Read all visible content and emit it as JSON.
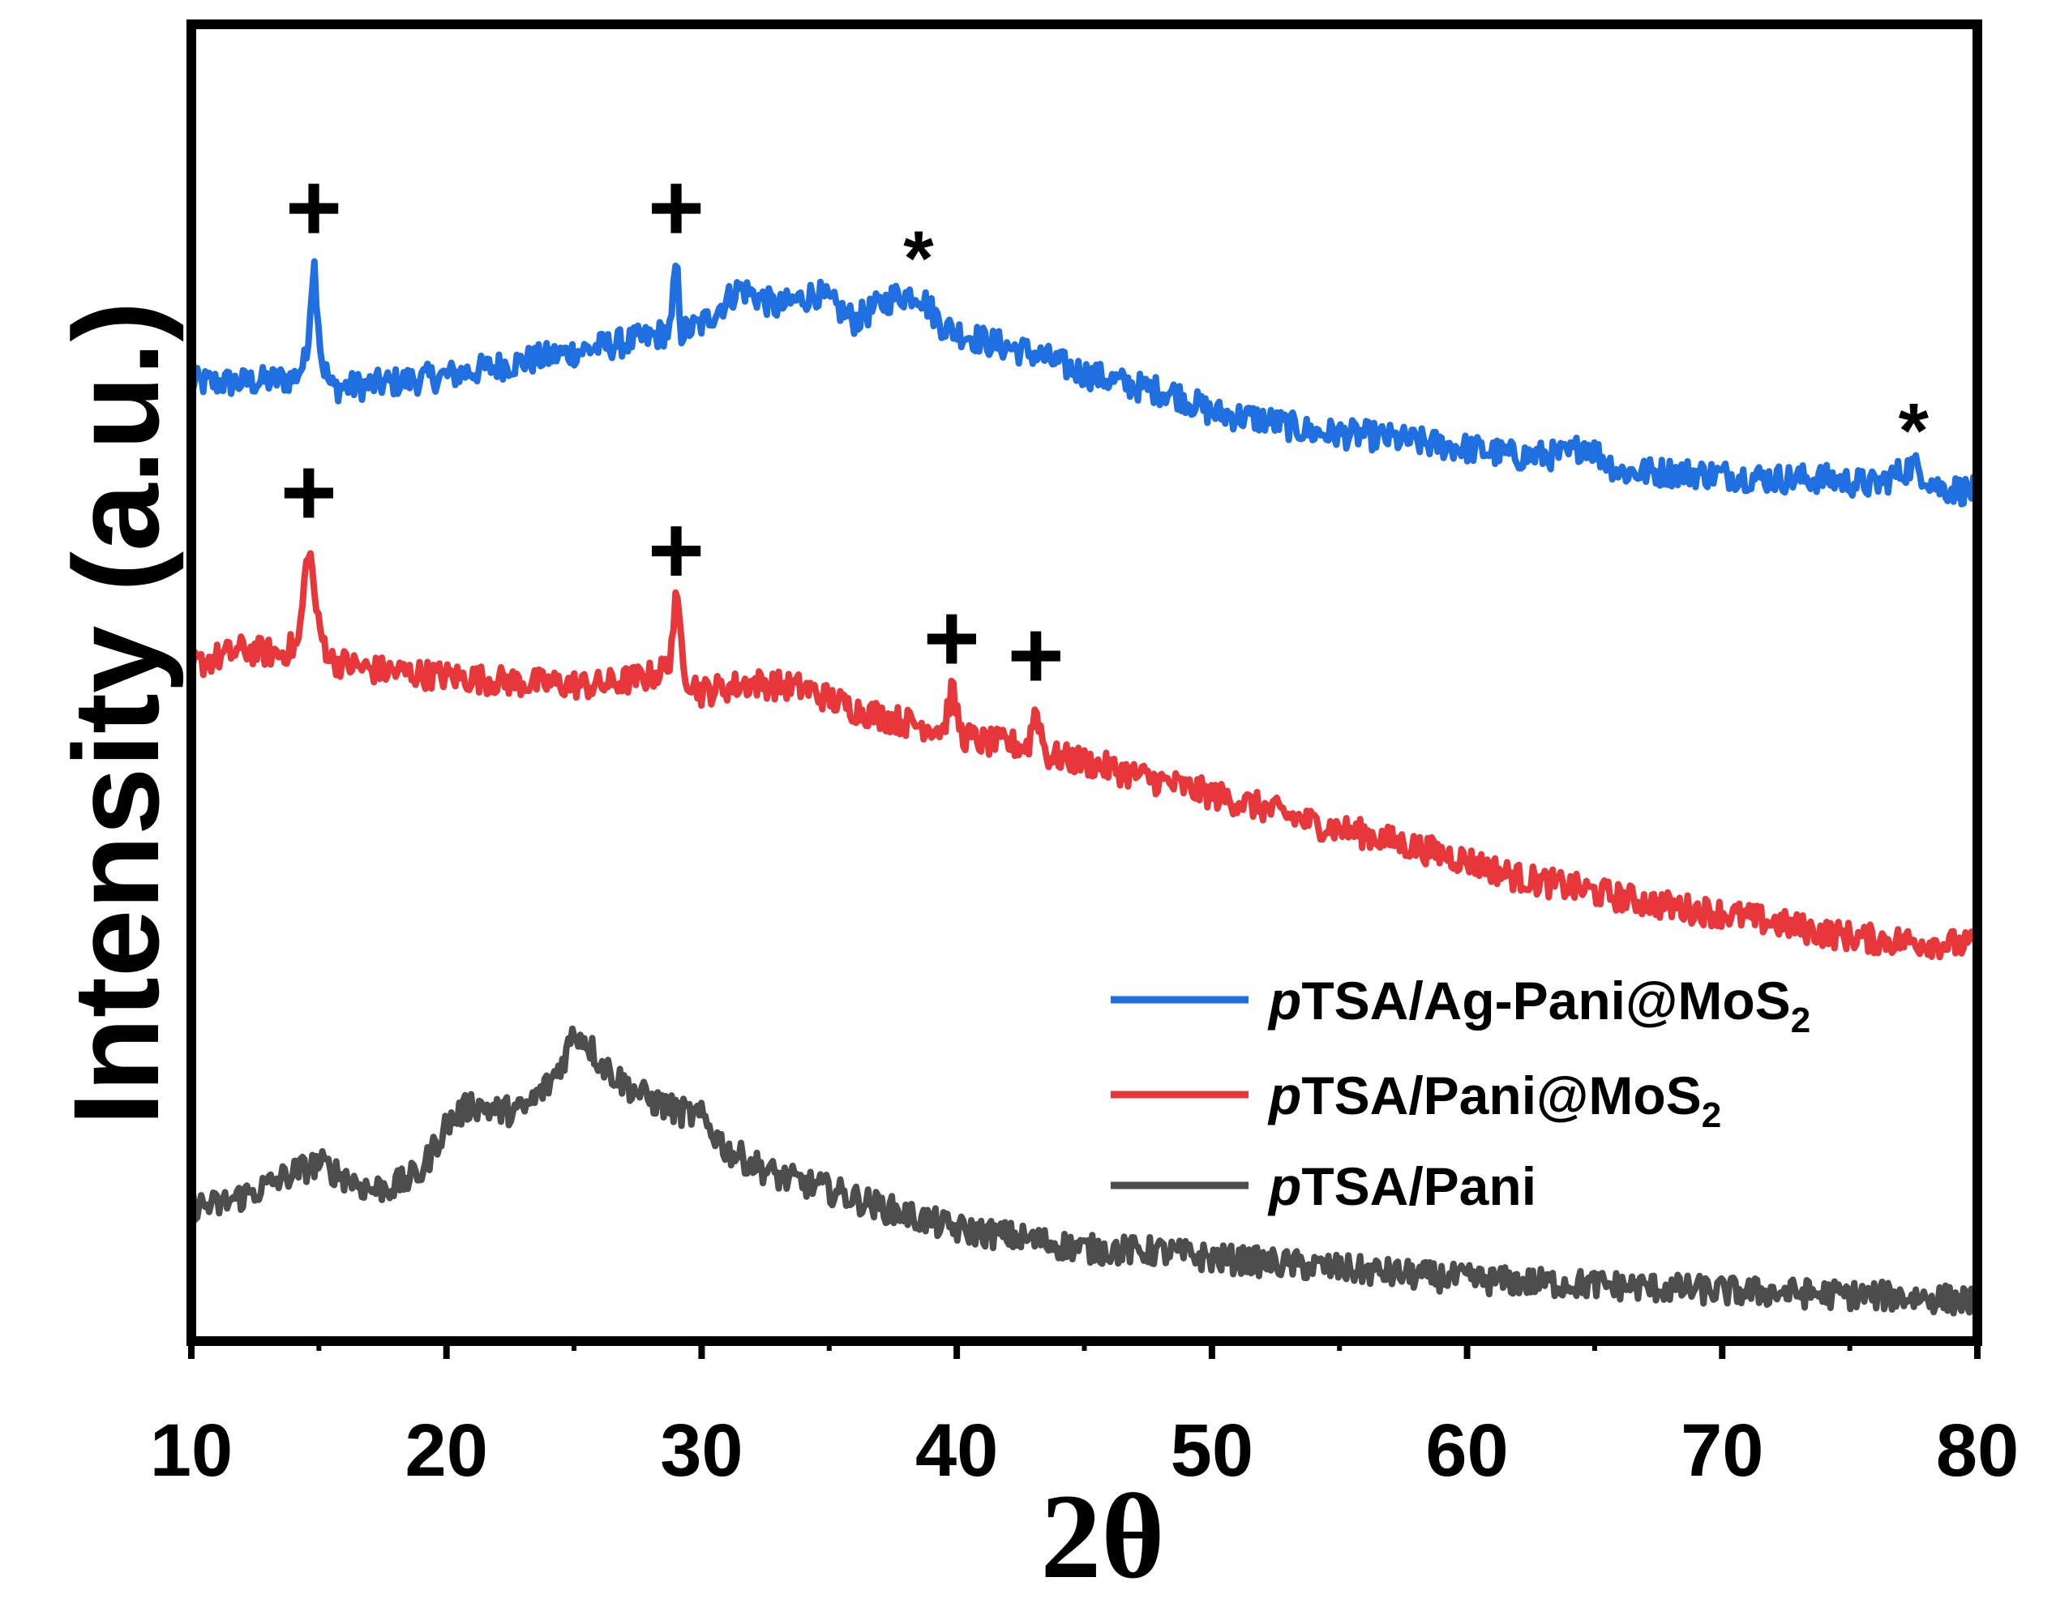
{
  "chart_data": {
    "type": "line",
    "title": "",
    "xlabel": "2θ",
    "ylabel": "Intensity (a.u.)",
    "xlim": [
      10,
      80
    ],
    "ylim": [
      0,
      1
    ],
    "xticks": [
      10,
      20,
      30,
      40,
      50,
      60,
      70,
      80
    ],
    "grid": false,
    "legend": "center-right",
    "series": [
      {
        "name": "pTSA/Ag-Pani@MoS2",
        "legend_italic": "p",
        "legend_main": "TSA/Ag-Pani@MoS",
        "legend_sub": "2",
        "color": "#1f6fe0",
        "x": [
          10,
          12,
          14,
          14.5,
          14.8,
          15.1,
          15.5,
          17,
          20,
          23,
          26,
          28,
          28.8,
          29.0,
          29.2,
          30,
          31.5,
          33,
          34.5,
          36,
          37.5,
          38.5,
          39.5,
          41,
          43,
          45,
          47,
          48.5,
          50,
          52,
          54,
          56,
          58,
          60,
          62,
          64,
          64.6,
          66,
          68,
          70,
          72,
          74,
          76,
          77.5,
          78.5,
          80
        ],
        "y": [
          0.728,
          0.728,
          0.731,
          0.745,
          0.822,
          0.745,
          0.724,
          0.726,
          0.733,
          0.744,
          0.755,
          0.762,
          0.768,
          0.822,
          0.766,
          0.772,
          0.8,
          0.785,
          0.796,
          0.775,
          0.793,
          0.796,
          0.77,
          0.76,
          0.75,
          0.735,
          0.725,
          0.72,
          0.705,
          0.7,
          0.69,
          0.688,
          0.683,
          0.678,
          0.672,
          0.673,
          0.682,
          0.66,
          0.66,
          0.658,
          0.655,
          0.655,
          0.65,
          0.665,
          0.648,
          0.645
        ]
      },
      {
        "name": "pTSA/Pani@MoS2",
        "legend_italic": "p",
        "legend_main": "TSA/Pani@MoS",
        "legend_sub": "2",
        "color": "#e8373a",
        "x": [
          10,
          12,
          13.5,
          14.2,
          14.6,
          15.0,
          15.5,
          17,
          20,
          23,
          26,
          28,
          28.7,
          29.0,
          29.4,
          30,
          32,
          34,
          36,
          38,
          39.5,
          39.8,
          40.2,
          41,
          42.8,
          43.1,
          43.5,
          45,
          48,
          50,
          52,
          54,
          56,
          58,
          60,
          62,
          64,
          66,
          68,
          70,
          72,
          74,
          76,
          78,
          80
        ],
        "y": [
          0.513,
          0.525,
          0.522,
          0.53,
          0.606,
          0.54,
          0.517,
          0.51,
          0.505,
          0.5,
          0.498,
          0.505,
          0.512,
          0.562,
          0.505,
          0.493,
          0.5,
          0.496,
          0.48,
          0.47,
          0.465,
          0.495,
          0.46,
          0.455,
          0.452,
          0.482,
          0.445,
          0.44,
          0.425,
          0.415,
          0.405,
          0.393,
          0.385,
          0.375,
          0.365,
          0.352,
          0.345,
          0.337,
          0.33,
          0.325,
          0.318,
          0.31,
          0.305,
          0.303,
          0.3
        ]
      },
      {
        "name": "pTSA/Pani",
        "legend_italic": "p",
        "legend_main": "TSA/Pani",
        "legend_sub": "",
        "color": "#4d4d4d",
        "x": [
          10,
          11,
          12,
          13,
          14,
          15,
          16,
          17,
          18,
          19,
          20,
          21,
          22,
          23,
          24,
          24.5,
          25,
          25.5,
          26,
          27,
          28,
          29,
          30,
          31,
          32,
          33,
          35,
          37,
          40,
          42,
          45,
          48,
          50,
          52,
          55,
          58,
          60,
          62,
          65,
          68,
          70,
          72,
          75,
          78,
          80
        ],
        "y": [
          0.103,
          0.103,
          0.11,
          0.118,
          0.128,
          0.135,
          0.125,
          0.115,
          0.118,
          0.128,
          0.165,
          0.18,
          0.175,
          0.175,
          0.195,
          0.21,
          0.235,
          0.228,
          0.212,
          0.195,
          0.183,
          0.175,
          0.17,
          0.145,
          0.135,
          0.125,
          0.115,
          0.102,
          0.085,
          0.08,
          0.07,
          0.068,
          0.063,
          0.06,
          0.055,
          0.05,
          0.047,
          0.045,
          0.043,
          0.04,
          0.038,
          0.037,
          0.035,
          0.033,
          0.03
        ]
      }
    ],
    "annotations": [
      {
        "label": "+",
        "series": 0,
        "x": 14.8
      },
      {
        "label": "+",
        "series": 0,
        "x": 29.0
      },
      {
        "label": "*",
        "series": 0,
        "x": 38.5
      },
      {
        "label": "*",
        "series": 0,
        "x": 77.5
      },
      {
        "label": "+",
        "series": 1,
        "x": 14.6
      },
      {
        "label": "+",
        "series": 1,
        "x": 29.0
      },
      {
        "label": "+",
        "series": 1,
        "x": 39.8
      },
      {
        "label": "+",
        "series": 1,
        "x": 43.1
      }
    ]
  }
}
